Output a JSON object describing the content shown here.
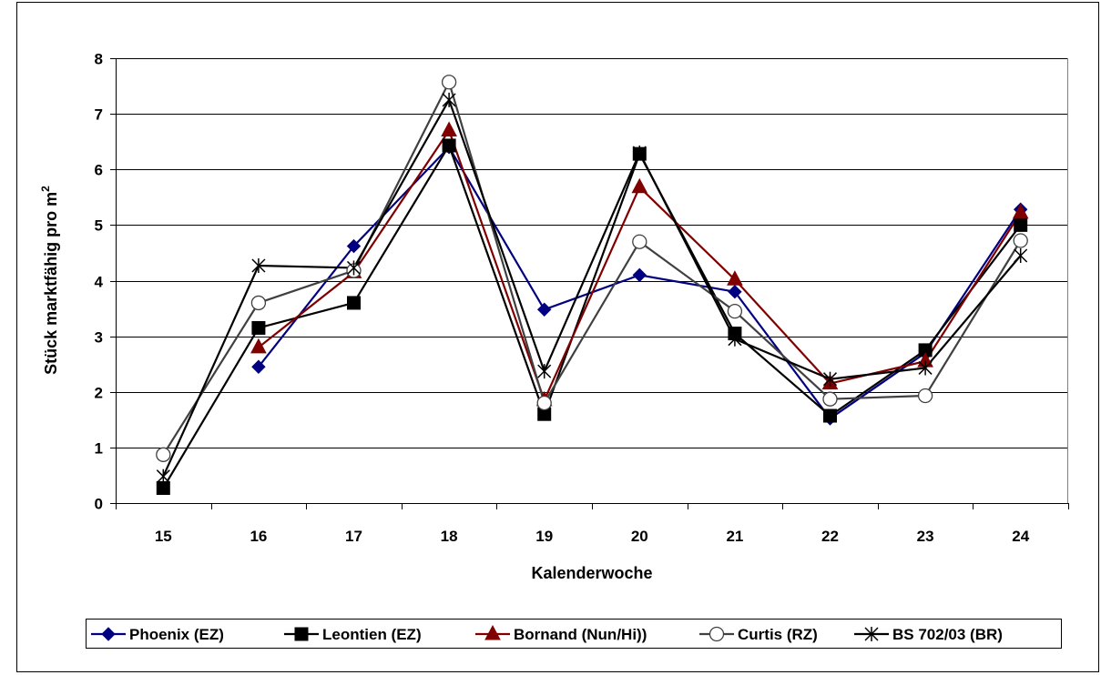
{
  "chart_data": {
    "type": "line",
    "title": "",
    "xlabel": "Kalenderwoche",
    "ylabel_main": "Stück marktfähig pro m",
    "ylabel_sup": "2",
    "categories": [
      "15",
      "16",
      "17",
      "18",
      "19",
      "20",
      "21",
      "22",
      "23",
      "24"
    ],
    "ylim": [
      0,
      8
    ],
    "yticks": [
      "0",
      "1",
      "2",
      "3",
      "4",
      "5",
      "6",
      "7",
      "8"
    ],
    "grid": "horizontal",
    "legend_position": "bottom",
    "series": [
      {
        "name": "Phoenix (EZ)",
        "color": "#000080",
        "marker": "diamond",
        "values": [
          null,
          2.45,
          4.62,
          6.4,
          3.48,
          4.1,
          3.8,
          1.52,
          2.7,
          5.28
        ]
      },
      {
        "name": "Leontien (EZ)",
        "color": "#000000",
        "marker": "square",
        "values": [
          0.27,
          3.15,
          3.6,
          6.43,
          1.6,
          6.28,
          3.05,
          1.57,
          2.75,
          5.0
        ]
      },
      {
        "name": "Bornand (Nun/Hi))",
        "color": "#800000",
        "marker": "triangle",
        "values": [
          null,
          2.8,
          4.15,
          6.7,
          1.85,
          5.68,
          4.02,
          2.15,
          2.55,
          5.22
        ]
      },
      {
        "name": "Curtis (RZ)",
        "color": "#404040",
        "marker": "circle",
        "values": [
          0.87,
          3.6,
          4.18,
          7.57,
          1.8,
          4.7,
          3.45,
          1.87,
          1.93,
          4.72
        ]
      },
      {
        "name": "BS 702/03 (BR)",
        "color": "#000000",
        "marker": "star",
        "values": [
          0.48,
          4.27,
          4.23,
          7.25,
          2.37,
          6.3,
          2.95,
          2.23,
          2.43,
          4.45
        ]
      }
    ]
  }
}
